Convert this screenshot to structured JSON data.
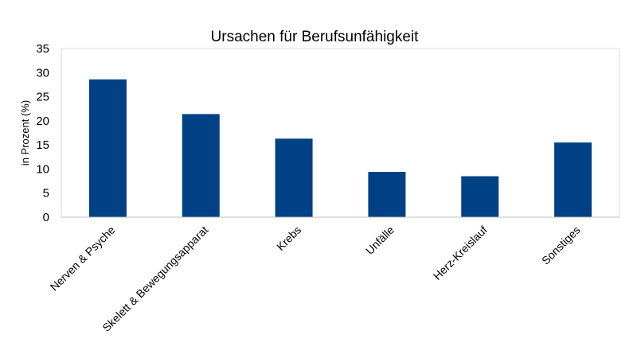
{
  "chart_data": {
    "type": "bar",
    "title": "Ursachen für Berufsunfähigkeit",
    "xlabel": "",
    "ylabel": "in Prozent (%)",
    "categories": [
      "Nerven & Psyche",
      "Skelett & Bewegungsapparat",
      "Krebs",
      "Unfälle",
      "Herz-Kreislauf",
      "Sonstiges"
    ],
    "values": [
      28.6,
      21.4,
      16.3,
      9.4,
      8.5,
      15.5
    ],
    "ylim": [
      0,
      35
    ],
    "yticks": [
      0,
      5,
      10,
      15,
      20,
      25,
      30,
      35
    ],
    "grid": false,
    "legend": "none",
    "colors": {
      "bar": "#004185",
      "axis": "#bfbfbf",
      "frame": "#d9d9d9"
    }
  }
}
